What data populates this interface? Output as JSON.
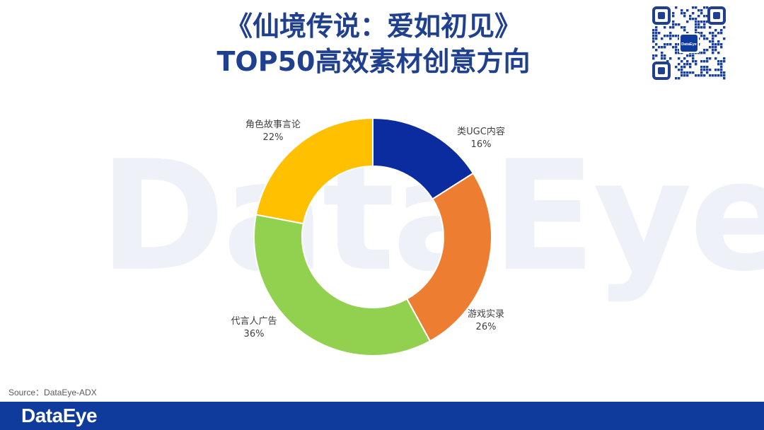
{
  "title_line1": "《仙境传说：爱如初见》",
  "title_line2": "TOP50高效素材创意方向",
  "watermark_text": "DataEye",
  "qr_logo_text": "DataEye",
  "source_text": "Source：DataEye-ADX",
  "footer_logo_text": "DataEye",
  "colors": {
    "title": "#1f3f8f",
    "footer": "#0f3c9c",
    "slice_ugc": "#0a2c9e",
    "slice_gameplay": "#ed7d31",
    "slice_spokesperson": "#92d050",
    "slice_story": "#ffc000"
  },
  "chart_data": {
    "type": "pie",
    "donut": true,
    "title": "",
    "slices": [
      {
        "label": "类UGC内容",
        "value": 16,
        "value_label": "16%",
        "color": "#0a2c9e"
      },
      {
        "label": "游戏实录",
        "value": 26,
        "value_label": "26%",
        "color": "#ed7d31"
      },
      {
        "label": "代言人广告",
        "value": 36,
        "value_label": "36%",
        "color": "#92d050"
      },
      {
        "label": "角色故事言论",
        "value": 22,
        "value_label": "22%",
        "color": "#ffc000"
      }
    ]
  }
}
